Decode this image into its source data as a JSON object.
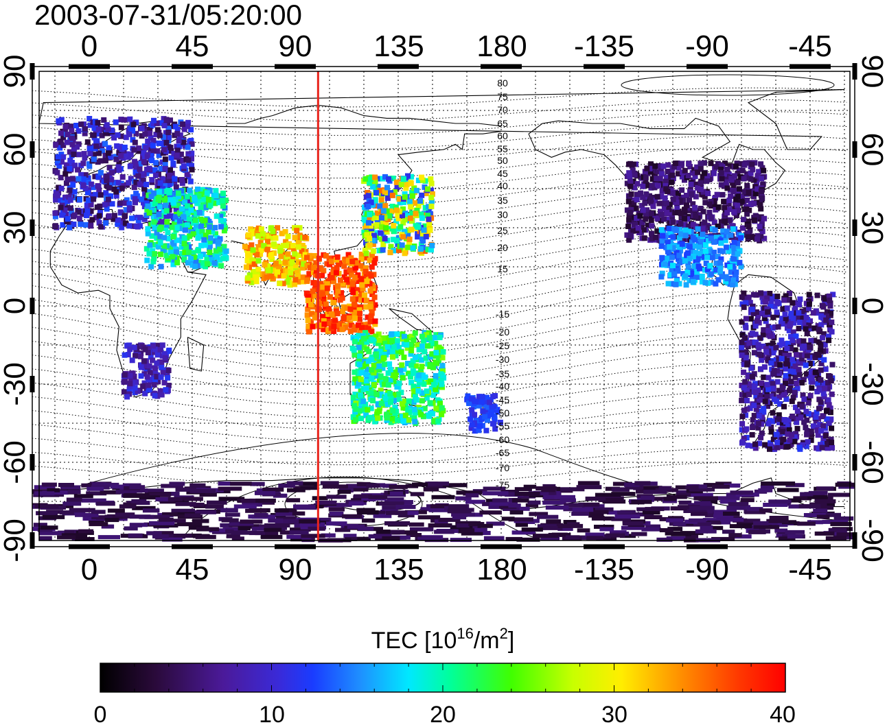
{
  "timestamp": "2003-07-31/05:20:00",
  "axes": {
    "x_top_ticks": [
      "0",
      "45",
      "90",
      "135",
      "180",
      "-135",
      "-90",
      "-45"
    ],
    "x_bottom_ticks": [
      "0",
      "45",
      "90",
      "135",
      "180",
      "-135",
      "-90",
      "-45"
    ],
    "y_left_ticks": [
      "90",
      "60",
      "30",
      "0",
      "-30",
      "-60",
      "-90"
    ],
    "y_right_ticks": [
      "90",
      "60",
      "30",
      "0",
      "-30",
      "-60",
      "-90"
    ],
    "lon_range": [
      -25,
      332
    ],
    "lat_range": [
      -92,
      92
    ],
    "grid": true
  },
  "marker": {
    "longitude": 100,
    "color": "#e8241c"
  },
  "colorbar": {
    "title": "TEC  [10",
    "title_sup": "16",
    "title_mid": "/m",
    "title_sup2": "2",
    "title_end": "]",
    "min": 0,
    "max": 40,
    "tick_labels": [
      "0",
      "10",
      "20",
      "30",
      "40"
    ]
  },
  "contour_labels": [
    "80",
    "75",
    "70",
    "65",
    "60",
    "55",
    "50",
    "45",
    "40",
    "35",
    "30",
    "25",
    "20",
    "15",
    "-15",
    "-20",
    "-25",
    "-30",
    "-35",
    "-40",
    "-45",
    "-50",
    "-55",
    "-60",
    "-65",
    "-70",
    "-75"
  ],
  "map_data": {
    "type": "heatmap",
    "units": "TEC (10^16/m^2)",
    "regions": [
      {
        "name": "Europe",
        "lon": [
          -15,
          45
        ],
        "lat": [
          30,
          72
        ],
        "tec": [
          3,
          14
        ]
      },
      {
        "name": "Middle East",
        "lon": [
          25,
          60
        ],
        "lat": [
          15,
          45
        ],
        "tec": [
          14,
          24
        ]
      },
      {
        "name": "South Asia",
        "lon": [
          68,
          95
        ],
        "lat": [
          8,
          30
        ],
        "tec": [
          26,
          36
        ]
      },
      {
        "name": "Southeast Asia",
        "lon": [
          95,
          125
        ],
        "lat": [
          -10,
          20
        ],
        "tec": [
          32,
          40
        ]
      },
      {
        "name": "East Asia",
        "lon": [
          120,
          150
        ],
        "lat": [
          20,
          50
        ],
        "tec": [
          10,
          36
        ]
      },
      {
        "name": "Australia",
        "lon": [
          115,
          155
        ],
        "lat": [
          -45,
          -10
        ],
        "tec": [
          16,
          26
        ]
      },
      {
        "name": "New Zealand",
        "lon": [
          165,
          180
        ],
        "lat": [
          -48,
          -34
        ],
        "tec": [
          10,
          14
        ]
      },
      {
        "name": "North America",
        "lon": [
          -125,
          -65
        ],
        "lat": [
          25,
          55
        ],
        "tec": [
          2,
          8
        ]
      },
      {
        "name": "Central America",
        "lon": [
          -110,
          -75
        ],
        "lat": [
          8,
          30
        ],
        "tec": [
          12,
          18
        ]
      },
      {
        "name": "South America",
        "lon": [
          -75,
          -35
        ],
        "lat": [
          -55,
          5
        ],
        "tec": [
          2,
          12
        ]
      },
      {
        "name": "Southern Africa",
        "lon": [
          15,
          35
        ],
        "lat": [
          -35,
          -15
        ],
        "tec": [
          5,
          12
        ]
      },
      {
        "name": "Antarctica",
        "lon": [
          -25,
          332
        ],
        "lat": [
          -90,
          -68
        ],
        "tec": [
          2,
          6
        ]
      }
    ]
  }
}
